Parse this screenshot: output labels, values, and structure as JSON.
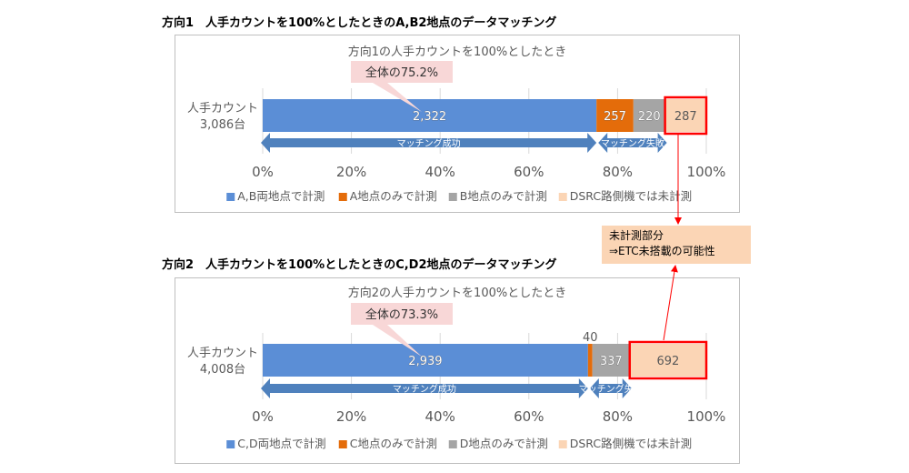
{
  "chart_data": [
    {
      "type": "bar",
      "orientation": "horizontal-stacked",
      "section_title": "方向1　人手カウントを100%としたときのA,B2地点のデータマッチング",
      "title": "方向1の人手カウントを100%としたとき",
      "category_label": [
        "人手カウント",
        "3,086台"
      ],
      "total": 3086,
      "xlim": [
        0,
        100
      ],
      "ticks": [
        "0%",
        "20%",
        "40%",
        "60%",
        "80%",
        "100%"
      ],
      "series": [
        {
          "name": "A,B両地点で計測",
          "value": 2322,
          "label": "2,322",
          "color": "#5b8ed6"
        },
        {
          "name": "A地点のみで計測",
          "value": 257,
          "label": "257",
          "color": "#e46c0a"
        },
        {
          "name": "B地点のみで計測",
          "value": 220,
          "label": "220",
          "color": "#a5a5a5"
        },
        {
          "name": "DSRC路側機では未計測",
          "value": 287,
          "label": "287",
          "color": "#fbd5b5"
        }
      ],
      "annotation": "全体の75.2%",
      "match_success": "マッチング成功",
      "match_fail": "マッチング失敗"
    },
    {
      "type": "bar",
      "orientation": "horizontal-stacked",
      "section_title": "方向2　人手カウントを100%としたときのC,D2地点のデータマッチング",
      "title": "方向2の人手カウントを100%としたとき",
      "category_label": [
        "人手カウント",
        "4,008台"
      ],
      "total": 4008,
      "xlim": [
        0,
        100
      ],
      "ticks": [
        "0%",
        "20%",
        "40%",
        "60%",
        "80%",
        "100%"
      ],
      "series": [
        {
          "name": "C,D両地点で計測",
          "value": 2939,
          "label": "2,939",
          "color": "#5b8ed6"
        },
        {
          "name": "C地点のみで計測",
          "value": 40,
          "label": "40",
          "color": "#e46c0a"
        },
        {
          "name": "D地点のみで計測",
          "value": 337,
          "label": "337",
          "color": "#a5a5a5"
        },
        {
          "name": "DSRC路側機では未計測",
          "value": 692,
          "label": "692",
          "color": "#fbd5b5"
        }
      ],
      "annotation": "全体の73.3%",
      "match_success": "マッチング成功",
      "match_fail": "マッチング失敗"
    }
  ],
  "callout": {
    "line1": "未計測部分",
    "line2": "⇒ETC未搭載の可能性"
  },
  "colors": {
    "highlight": "#ff0000",
    "arrow_band": "#4f81bd",
    "grid": "#d9d9d9"
  }
}
